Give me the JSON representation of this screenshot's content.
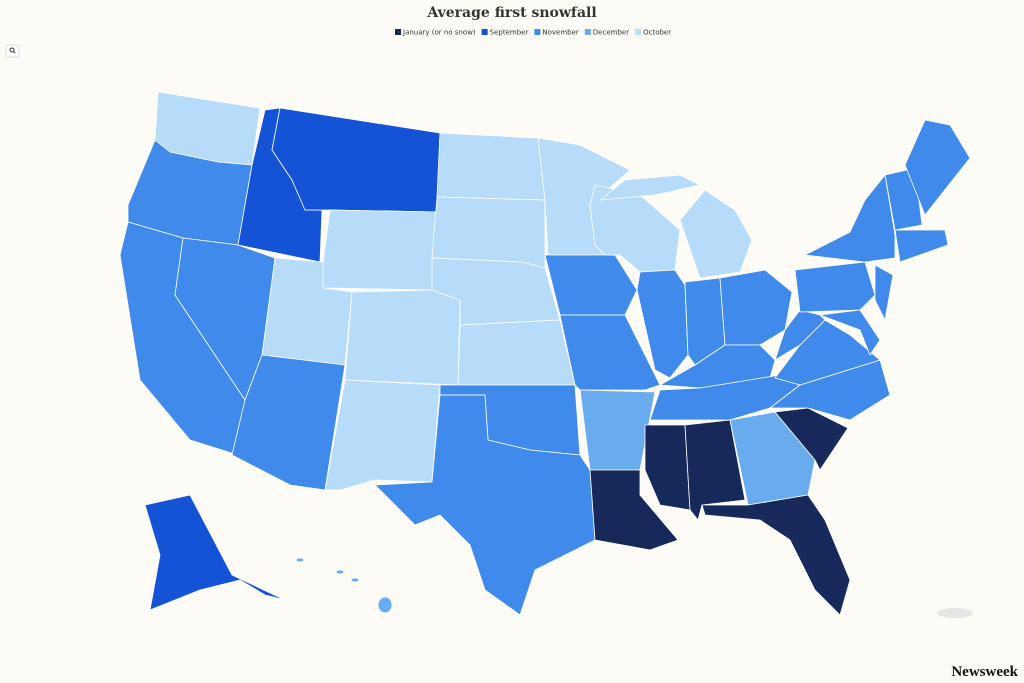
{
  "title": "Average first snowfall",
  "legend": {
    "items": [
      {
        "label": "January (or no snow)",
        "color": "#16295a"
      },
      {
        "label": "September",
        "color": "#1452d6"
      },
      {
        "label": "November",
        "color": "#3f8aea"
      },
      {
        "label": "December",
        "color": "#68abef"
      },
      {
        "label": "October",
        "color": "#b7dcfa"
      }
    ]
  },
  "brand": "Newsweek"
}
